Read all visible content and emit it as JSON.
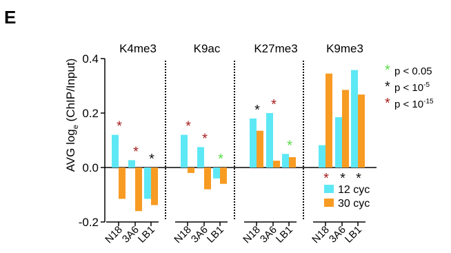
{
  "panel_letter": "E",
  "legend": {
    "significance": [
      {
        "star": "*",
        "text": "p < 0.05",
        "color": "#55dd44"
      },
      {
        "star": "*",
        "text": "p < 10",
        "sup": "-5",
        "color": "#111111"
      },
      {
        "star": "*",
        "text": "p < 10",
        "sup": "-15",
        "color": "#a61c1c"
      }
    ]
  },
  "chart_data": {
    "type": "bar",
    "ylabel": "AVG log",
    "ylabel_sub": "e",
    "ylabel_rest": " (ChIP/Input)",
    "ylim": [
      -0.2,
      0.4
    ],
    "yticks": [
      -0.2,
      0.0,
      0.2,
      0.4
    ],
    "ytick_labels": [
      "-0.2",
      "0.0",
      "0.2",
      "0.4"
    ],
    "categories": [
      "N18",
      "3A6",
      "LB1"
    ],
    "panels": [
      {
        "title": "K4me3",
        "series": [
          {
            "name": "12 cyc",
            "values": [
              0.12,
              0.027,
              -0.115
            ]
          },
          {
            "name": "30 cyc",
            "values": [
              -0.115,
              -0.16,
              -0.138
            ]
          }
        ],
        "stars": [
          {
            "cat": 0,
            "color": "red",
            "pos": "above"
          },
          {
            "cat": 1,
            "color": "red",
            "pos": "above"
          },
          {
            "cat": 2,
            "color": "black",
            "pos": "above"
          }
        ]
      },
      {
        "title": "K9ac",
        "series": [
          {
            "name": "12 cyc",
            "values": [
              0.12,
              0.075,
              -0.04
            ]
          },
          {
            "name": "30 cyc",
            "values": [
              -0.02,
              -0.08,
              -0.06
            ]
          }
        ],
        "stars": [
          {
            "cat": 0,
            "color": "red",
            "pos": "above"
          },
          {
            "cat": 1,
            "color": "red",
            "pos": "above"
          },
          {
            "cat": 2,
            "color": "green",
            "pos": "above"
          }
        ]
      },
      {
        "title": "K27me3",
        "series": [
          {
            "name": "12 cyc",
            "values": [
              0.18,
              0.2,
              0.05
            ]
          },
          {
            "name": "30 cyc",
            "values": [
              0.135,
              0.025,
              0.038
            ]
          }
        ],
        "stars": [
          {
            "cat": 0,
            "color": "black",
            "pos": "above"
          },
          {
            "cat": 1,
            "color": "red",
            "pos": "above"
          },
          {
            "cat": 2,
            "color": "green",
            "pos": "above"
          }
        ]
      },
      {
        "title": "K9me3",
        "series": [
          {
            "name": "12 cyc",
            "values": [
              0.082,
              0.185,
              0.358
            ]
          },
          {
            "name": "30 cyc",
            "values": [
              0.345,
              0.285,
              0.268
            ]
          }
        ],
        "stars": [
          {
            "cat": 0,
            "color": "red",
            "pos": "below"
          },
          {
            "cat": 1,
            "color": "black",
            "pos": "below"
          },
          {
            "cat": 2,
            "color": "black",
            "pos": "below"
          }
        ]
      }
    ],
    "colors": {
      "12 cyc": "#5de8f5",
      "30 cyc": "#f79b23",
      "star_red": "#a61c1c",
      "star_black": "#111111",
      "star_green": "#55dd44"
    },
    "legend_position": "bottom-right"
  }
}
